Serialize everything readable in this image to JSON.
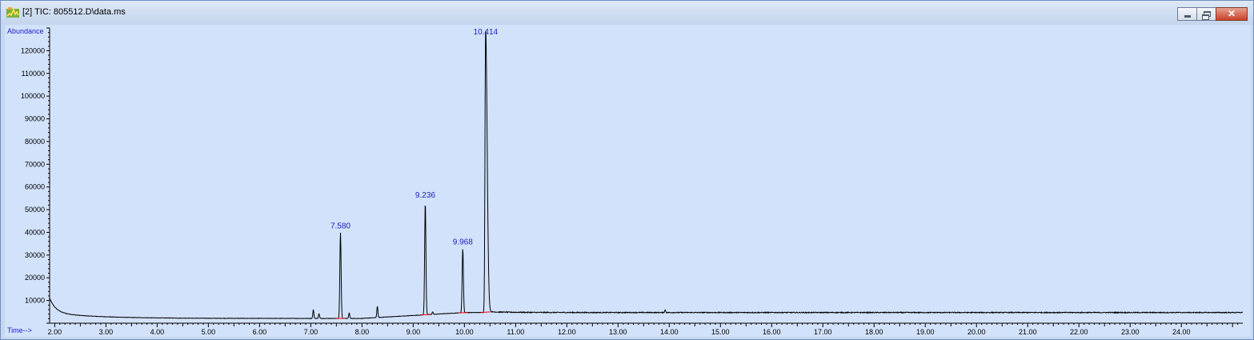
{
  "window": {
    "title": "[2] TIC: 805512.D\\data.ms",
    "icon": "chromatogram-app-icon",
    "buttons": [
      "minimize-icon",
      "restore-icon",
      "close-icon"
    ],
    "close_label": "✕"
  },
  "chart_data": {
    "type": "line",
    "ylabel": "Abundance",
    "xlabel": "Time-->",
    "xlim": [
      1.9,
      25.2
    ],
    "ylim": [
      0,
      130000
    ],
    "x_ticks": [
      "2.00",
      "3.00",
      "4.00",
      "5.00",
      "6.00",
      "7.00",
      "8.00",
      "9.00",
      "10.00",
      "11.00",
      "12.00",
      "13.00",
      "14.00",
      "15.00",
      "16.00",
      "17.00",
      "18.00",
      "19.00",
      "20.00",
      "21.00",
      "22.00",
      "23.00",
      "24.00"
    ],
    "y_ticks": [
      "10000",
      "20000",
      "30000",
      "40000",
      "50000",
      "60000",
      "70000",
      "80000",
      "90000",
      "100000",
      "110000",
      "120000"
    ],
    "grid": false,
    "line_color": "#000000",
    "baseline_color": "#ff0000",
    "label_color": "#1c1cc8",
    "background": "#d2e2fa",
    "peaks": [
      {
        "rt": 7.58,
        "label": "7.580",
        "height": 40000
      },
      {
        "rt": 9.236,
        "label": "9.236",
        "height": 53500
      },
      {
        "rt": 9.968,
        "label": "9.968",
        "height": 33000
      },
      {
        "rt": 10.414,
        "label": "10.414",
        "height": 130000
      }
    ],
    "minor_peaks": [
      {
        "rt": 7.05,
        "height": 6000
      },
      {
        "rt": 7.16,
        "height": 4200
      },
      {
        "rt": 7.75,
        "height": 4500
      },
      {
        "rt": 8.3,
        "height": 7500
      },
      {
        "rt": 9.38,
        "height": 5000
      },
      {
        "rt": 10.21,
        "height": 4500
      },
      {
        "rt": 13.92,
        "height": 5800
      }
    ]
  }
}
